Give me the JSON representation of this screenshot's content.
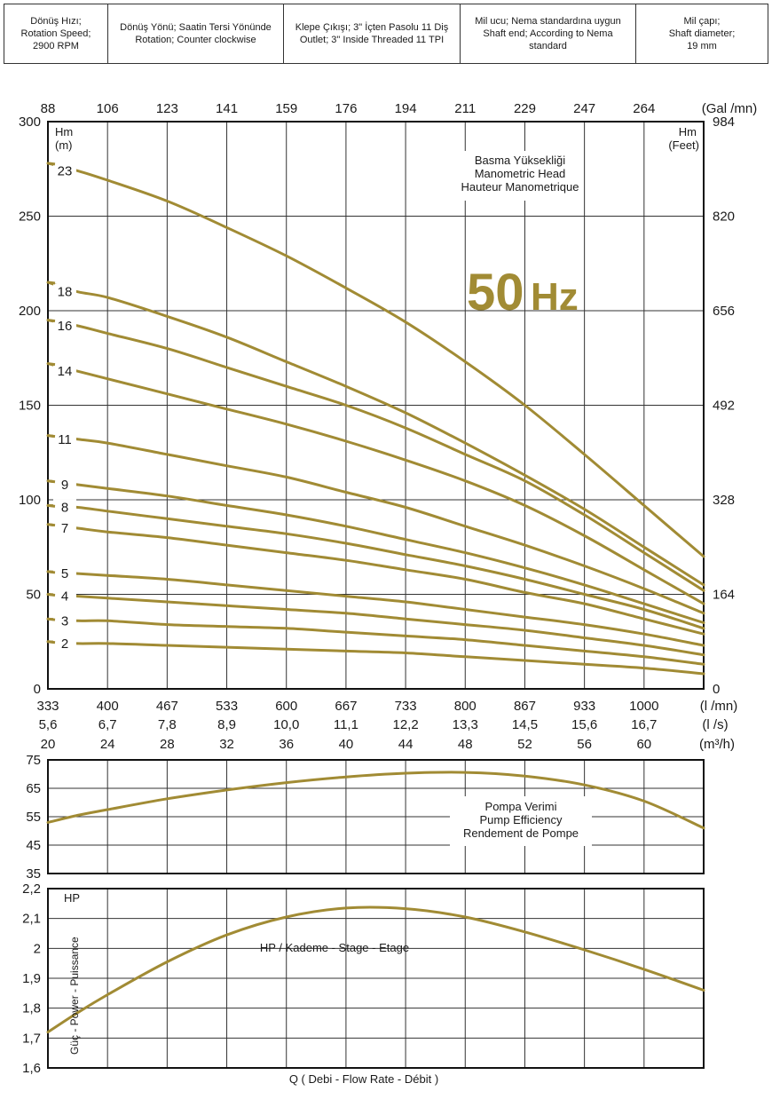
{
  "spec_table": [
    {
      "lines": [
        "Dönüş Hızı;",
        "Rotation Speed;",
        "2900 RPM"
      ]
    },
    {
      "lines": [
        "Dönüş Yönü; Saatin Tersi Yönünde",
        "Rotation; Counter clockwise"
      ]
    },
    {
      "lines": [
        "Klepe Çıkışı; 3\" İçten Pasolu 11 Diş",
        "Outlet; 3\" Inside Threaded 11 TPI"
      ]
    },
    {
      "lines": [
        "Mil ucu; Nema standardına uygun",
        "Shaft end; According to Nema standard"
      ]
    },
    {
      "lines": [
        "Mil çapı;",
        "Shaft diameter;",
        "19 mm"
      ]
    }
  ],
  "colors": {
    "curve": "#a18b34",
    "frequency": "#a18b34",
    "grid": "#333333",
    "frame": "#111111"
  },
  "chart_data": [
    {
      "type": "line",
      "title": "Basma Yüksekliği",
      "title_lines": [
        "Basma Yüksekliği",
        "Manometric Head",
        "Hauteur Manometrique"
      ],
      "frequency_label": "50 Hz",
      "ylabel_left": [
        "Hm",
        "(m)"
      ],
      "ylabel_right": [
        "Hm",
        "(Feet)"
      ],
      "ylim": [
        0,
        300
      ],
      "y_ticks": [
        0,
        50,
        100,
        150,
        200,
        250,
        300
      ],
      "y_ticks_right": [
        "0",
        "164",
        "328",
        "492",
        "656",
        "820",
        "984"
      ],
      "xlim": [
        20,
        64
      ],
      "grid": true,
      "x_axes": {
        "galmin": {
          "ticks": [
            "88",
            "106",
            "123",
            "141",
            "159",
            "176",
            "194",
            "211",
            "229",
            "247",
            "264"
          ],
          "unit": "(Gal /mn)"
        },
        "lmn": {
          "ticks": [
            "333",
            "400",
            "467",
            "533",
            "600",
            "667",
            "733",
            "800",
            "867",
            "933",
            "1000"
          ],
          "unit": "(l /mn)"
        },
        "ls": {
          "ticks": [
            "5,6",
            "6,7",
            "7,8",
            "8,9",
            "10,0",
            "11,1",
            "12,2",
            "13,3",
            "14,5",
            "15,6",
            "16,7"
          ],
          "unit": "(l /s)"
        },
        "m3h": {
          "ticks": [
            "20",
            "24",
            "28",
            "32",
            "36",
            "40",
            "44",
            "48",
            "52",
            "56",
            "60"
          ],
          "unit": "(m³/h)"
        }
      },
      "x": [
        20,
        22,
        24,
        28,
        32,
        36,
        40,
        44,
        48,
        52,
        56,
        60,
        64
      ],
      "series": [
        {
          "name": "23",
          "values": [
            278,
            274,
            269,
            258,
            244,
            229,
            212,
            194,
            173,
            150,
            124,
            97,
            70
          ]
        },
        {
          "name": "18",
          "values": [
            215,
            210,
            207,
            197,
            186,
            173,
            160,
            146,
            130,
            113,
            95,
            75,
            55
          ]
        },
        {
          "name": "16",
          "values": [
            195,
            192,
            188,
            180,
            170,
            160,
            150,
            138,
            124,
            110,
            92,
            72,
            52
          ]
        },
        {
          "name": "14",
          "values": [
            172,
            168,
            164,
            156,
            148,
            140,
            131,
            121,
            110,
            97,
            81,
            63,
            45
          ]
        },
        {
          "name": "11",
          "values": [
            134,
            132,
            130,
            124,
            118,
            112,
            104,
            96,
            86,
            76,
            65,
            53,
            40
          ]
        },
        {
          "name": "9",
          "values": [
            110,
            108,
            106,
            102,
            97,
            92,
            86,
            79,
            72,
            64,
            55,
            45,
            35
          ]
        },
        {
          "name": "8",
          "values": [
            97,
            96,
            94,
            90,
            86,
            82,
            77,
            71,
            65,
            58,
            50,
            42,
            32
          ]
        },
        {
          "name": "7",
          "values": [
            87,
            85,
            83,
            80,
            76,
            72,
            68,
            63,
            58,
            51,
            45,
            37,
            29
          ]
        },
        {
          "name": "5",
          "values": [
            62,
            61,
            60,
            58,
            55,
            52,
            49,
            46,
            42,
            38,
            34,
            29,
            23
          ]
        },
        {
          "name": "4",
          "values": [
            50,
            49,
            48,
            46,
            44,
            42,
            40,
            37,
            34,
            31,
            27,
            23,
            18
          ]
        },
        {
          "name": "3",
          "values": [
            37,
            36,
            36,
            34,
            33,
            32,
            30,
            28,
            26,
            23,
            20,
            17,
            13
          ]
        },
        {
          "name": "2",
          "values": [
            25,
            24,
            24,
            23,
            22,
            21,
            20,
            19,
            17,
            15,
            13,
            11,
            8
          ]
        }
      ]
    },
    {
      "type": "line",
      "title": "Pompa Verimi",
      "title_lines": [
        "Pompa Verimi",
        "Pump Efficiency",
        "Rendement de Pompe"
      ],
      "ylim": [
        35,
        75
      ],
      "y_ticks": [
        35,
        45,
        55,
        65,
        75
      ],
      "xlim": [
        20,
        64
      ],
      "grid": true,
      "x": [
        20,
        22,
        24,
        28,
        32,
        36,
        40,
        44,
        48,
        52,
        56,
        60,
        64
      ],
      "series": [
        {
          "values": [
            53,
            55.5,
            57.5,
            61.3,
            64.4,
            67,
            69,
            70.3,
            70.6,
            69.3,
            66.2,
            60.5,
            51
          ]
        }
      ]
    },
    {
      "type": "line",
      "title": "HP / Kademe - Stage - Etage",
      "ylabel": "Güç - Power - Puissance",
      "unit_label": "HP",
      "ylim": [
        1.6,
        2.2
      ],
      "y_ticks": [
        "1,6",
        "1,7",
        "1,8",
        "1,9",
        "2",
        "2,1",
        "2,2"
      ],
      "xlim": [
        20,
        64
      ],
      "xlabel": "Q   ( Debi - Flow Rate - Débit )",
      "grid": true,
      "x": [
        20,
        22,
        24,
        28,
        32,
        36,
        40,
        44,
        48,
        52,
        56,
        60,
        64
      ],
      "series": [
        {
          "values": [
            1.72,
            1.785,
            1.845,
            1.955,
            2.045,
            2.105,
            2.135,
            2.133,
            2.105,
            2.055,
            1.995,
            1.93,
            1.86
          ]
        }
      ]
    }
  ]
}
